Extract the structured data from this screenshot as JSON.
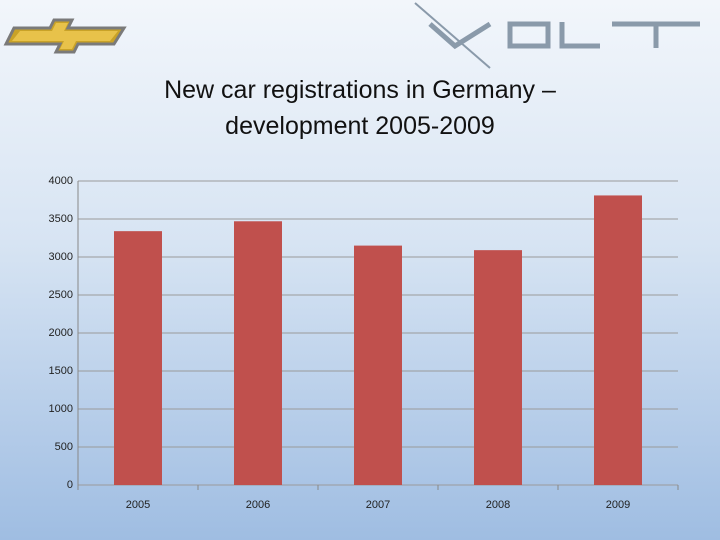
{
  "chart_data": {
    "type": "bar",
    "title": "New car registrations in Germany – development 2005-2009",
    "categories": [
      "2005",
      "2006",
      "2007",
      "2008",
      "2009"
    ],
    "values": [
      3340,
      3470,
      3150,
      3090,
      3810
    ],
    "color": "#c0504d",
    "ylim": [
      0,
      4000
    ],
    "yticks": [
      0,
      500,
      1000,
      1500,
      2000,
      2500,
      3000,
      3500,
      4000
    ],
    "grid": true
  }
}
